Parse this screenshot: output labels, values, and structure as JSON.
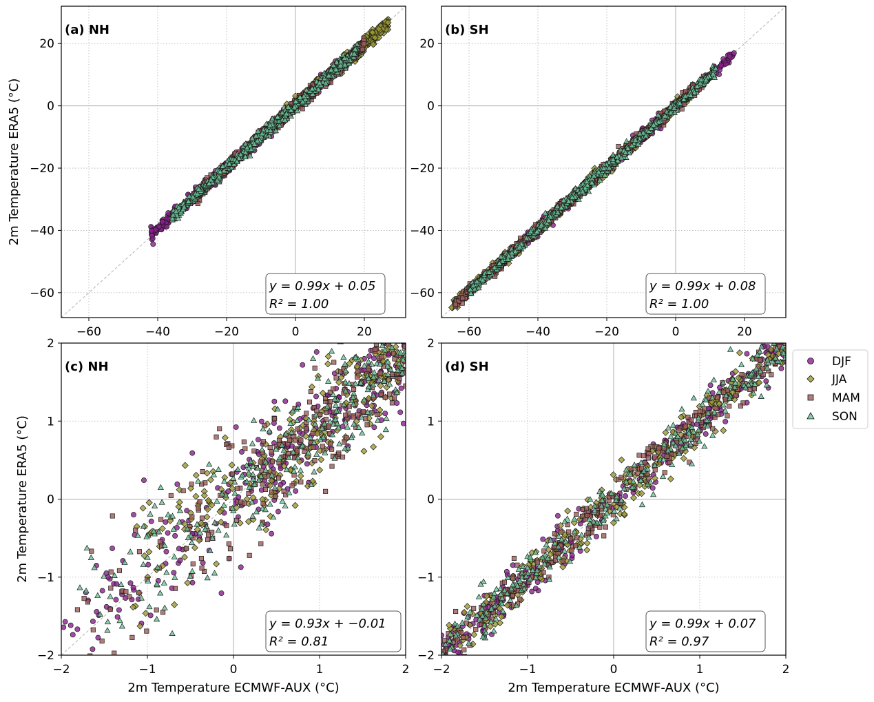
{
  "legend": {
    "entries": [
      {
        "label": "DJF",
        "marker": "circle",
        "color": "#8B1F8E"
      },
      {
        "label": "JJA",
        "marker": "diamond",
        "color": "#9C9A32"
      },
      {
        "label": "MAM",
        "marker": "square",
        "color": "#9E5D5A"
      },
      {
        "label": "SON",
        "marker": "triangle",
        "color": "#6CC49A"
      }
    ]
  },
  "chart_data": [
    {
      "type": "scatter",
      "panel_label": "(a) NH",
      "title": "",
      "xlabel": "",
      "ylabel": "2m Temperature ERA5 (°C)",
      "xlim": [
        -68,
        32
      ],
      "ylim": [
        -68,
        32
      ],
      "xticks": [
        -60,
        -40,
        -20,
        0,
        20
      ],
      "yticks": [
        -60,
        -40,
        -20,
        0,
        20
      ],
      "fit_line": "y = 0.99x + 0.05",
      "r2": "R² = 1.00",
      "series_ranges": {
        "DJF": [
          -42,
          16
        ],
        "JJA": [
          -6,
          27
        ],
        "MAM": [
          -30,
          20
        ],
        "SON": [
          -36,
          18
        ]
      },
      "noise": 1.0
    },
    {
      "type": "scatter",
      "panel_label": "(b) SH",
      "title": "",
      "xlabel": "",
      "ylabel": "",
      "xlim": [
        -68,
        32
      ],
      "ylim": [
        -68,
        32
      ],
      "xticks": [
        -60,
        -40,
        -20,
        0,
        20
      ],
      "yticks": [
        -60,
        -40,
        -20,
        0,
        20
      ],
      "fit_line": "y = 0.99x + 0.08",
      "r2": "R² = 1.00",
      "series_ranges": {
        "DJF": [
          -52,
          17
        ],
        "JJA": [
          -65,
          5
        ],
        "MAM": [
          -64,
          10
        ],
        "SON": [
          -60,
          12
        ]
      },
      "noise": 0.9
    },
    {
      "type": "scatter",
      "panel_label": "(c) NH",
      "title": "",
      "xlabel": "2m Temperature ECMWF-AUX (°C)",
      "ylabel": "2m Temperature ERA5 (°C)",
      "xlim": [
        -2,
        2
      ],
      "ylim": [
        -2,
        2
      ],
      "xticks": [
        -2,
        -1,
        0,
        1,
        2
      ],
      "yticks": [
        -2,
        -1,
        0,
        1,
        2
      ],
      "fit_line": "y = 0.93x + −0.01",
      "r2": "R² = 0.81",
      "series_ranges": {
        "DJF": [
          -2,
          2
        ],
        "JJA": [
          -1.4,
          2
        ],
        "MAM": [
          -2,
          2
        ],
        "SON": [
          -2,
          2
        ]
      },
      "noise": 0.35
    },
    {
      "type": "scatter",
      "panel_label": "(d) SH",
      "title": "",
      "xlabel": "2m Temperature ECMWF-AUX (°C)",
      "ylabel": "",
      "xlim": [
        -2,
        2
      ],
      "ylim": [
        -2,
        2
      ],
      "xticks": [
        -2,
        -1,
        0,
        1,
        2
      ],
      "yticks": [
        -2,
        -1,
        0,
        1,
        2
      ],
      "fit_line": "y = 0.99x + 0.07",
      "r2": "R² = 0.97",
      "series_ranges": {
        "DJF": [
          -2,
          2
        ],
        "JJA": [
          -2,
          2
        ],
        "MAM": [
          -2,
          2
        ],
        "SON": [
          -2,
          2
        ]
      },
      "noise": 0.15
    }
  ]
}
